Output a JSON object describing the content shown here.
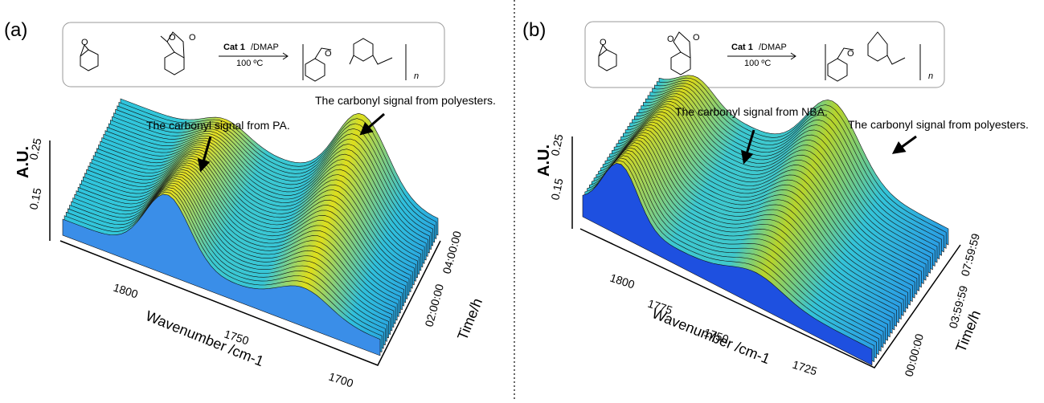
{
  "panels": [
    {
      "label": "(a)",
      "scheme": {
        "atom": "O",
        "catalyst": "Cat 1",
        "cocatalyst": "/DMAP",
        "temperature": "100 ºC",
        "repeat": "n"
      },
      "annotations": [
        "The carbonyl signal from PA.",
        "The carbonyl signal from polyesters."
      ],
      "y_axis": {
        "label": "A.U.",
        "ticks": [
          "0.25",
          "0.15"
        ]
      },
      "x_axis": {
        "label": "Wavenumber /cm-1",
        "ticks": [
          "1800",
          "1750",
          "1700"
        ]
      },
      "time_axis": {
        "label": "Time/h",
        "ticks": [
          "04:00:00",
          "02:00:00"
        ]
      }
    },
    {
      "label": "(b)",
      "scheme": {
        "atom": "O",
        "catalyst": "Cat 1",
        "cocatalyst": "/DMAP",
        "temperature": "100 ºC",
        "repeat": "n"
      },
      "annotations": [
        "The carbonyl signal from NBA.",
        "The carbonyl signal from polyesters."
      ],
      "y_axis": {
        "label": "A.U.",
        "ticks": [
          "0.25",
          "0.15"
        ]
      },
      "x_axis": {
        "label": "Wavenumber /cm-1",
        "ticks": [
          "1800",
          "1775",
          "1750",
          "1725"
        ]
      },
      "time_axis": {
        "label": "Time/h",
        "ticks": [
          "07:59:59",
          "03:59:59",
          "00:00:00"
        ]
      }
    }
  ]
}
